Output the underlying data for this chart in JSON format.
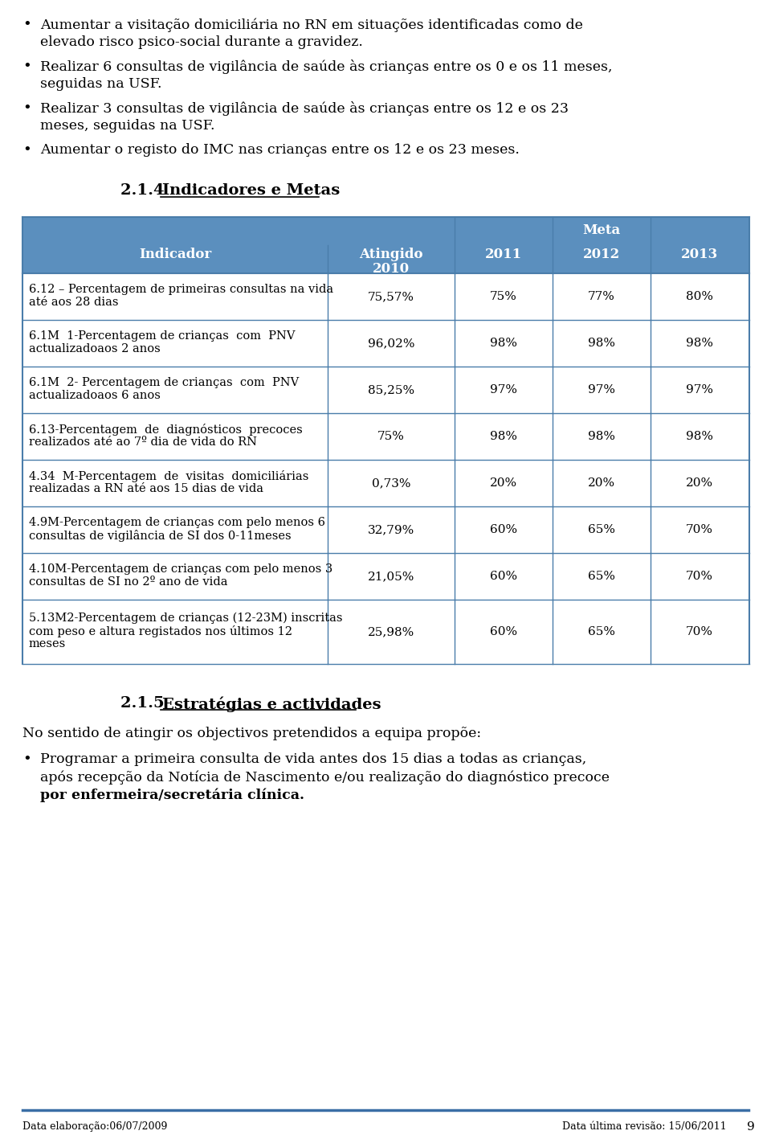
{
  "bg_color": "#ffffff",
  "text_color": "#000000",
  "header_bg": "#5b8fbe",
  "header_text": "#ffffff",
  "table_border": "#4a7daa",
  "section_title": "2.1.4",
  "section_title_rest": "Indicadores e Metas",
  "table_rows": [
    {
      "indicator": "6.12 – Percentagem de primeiras consultas na vida\naté aos 28 dias",
      "atingido": "75,57%",
      "m2011": "75%",
      "m2012": "77%",
      "m2013": "80%"
    },
    {
      "indicator": "6.1M  1-Percentagem de crianças  com  PNV\nactualizadoaos 2 anos",
      "atingido": "96,02%",
      "m2011": "98%",
      "m2012": "98%",
      "m2013": "98%"
    },
    {
      "indicator": "6.1M  2- Percentagem de crianças  com  PNV\nactualizadoaos 6 anos",
      "atingido": "85,25%",
      "m2011": "97%",
      "m2012": "97%",
      "m2013": "97%"
    },
    {
      "indicator": "6.13-Percentagem  de  diagnósticos  precoces\nrealizados até ao 7º dia de vida do RN",
      "atingido": "75%",
      "m2011": "98%",
      "m2012": "98%",
      "m2013": "98%"
    },
    {
      "indicator": "4.34  M-Percentagem  de  visitas  domiciliárias\nrealizadas a RN até aos 15 dias de vida",
      "atingido": "0,73%",
      "m2011": "20%",
      "m2012": "20%",
      "m2013": "20%"
    },
    {
      "indicator": "4.9M-Percentagem de crianças com pelo menos 6\nconsultas de vigilância de SI dos 0-11meses",
      "atingido": "32,79%",
      "m2011": "60%",
      "m2012": "65%",
      "m2013": "70%"
    },
    {
      "indicator": "4.10M-Percentagem de crianças com pelo menos 3\nconsultas de SI no 2º ano de vida",
      "atingido": "21,05%",
      "m2011": "60%",
      "m2012": "65%",
      "m2013": "70%"
    },
    {
      "indicator": "5.13M2-Percentagem de crianças (12-23M) inscritas\ncom peso e altura registados nos últimos 12\nmeses",
      "atingido": "25,98%",
      "m2011": "60%",
      "m2012": "65%",
      "m2013": "70%"
    }
  ],
  "section2_title": "2.1.5",
  "section2_title_rest": "Estratégias e actividades",
  "section2_text": "No sentido de atingir os objectivos pretendidos a equipa propõe:",
  "section2_bullet_lines": [
    "Programar a primeira consulta de vida antes dos 15 dias a todas as crianças,",
    "após recepção da Notícia de Nascimento e/ou realização do diagnóstico precoce",
    "por enfermeira/secretária clínica."
  ],
  "footer_left": "Data elaboração:06/07/2009",
  "footer_right": "Data última revisão: 15/06/2011",
  "footer_page": "9"
}
